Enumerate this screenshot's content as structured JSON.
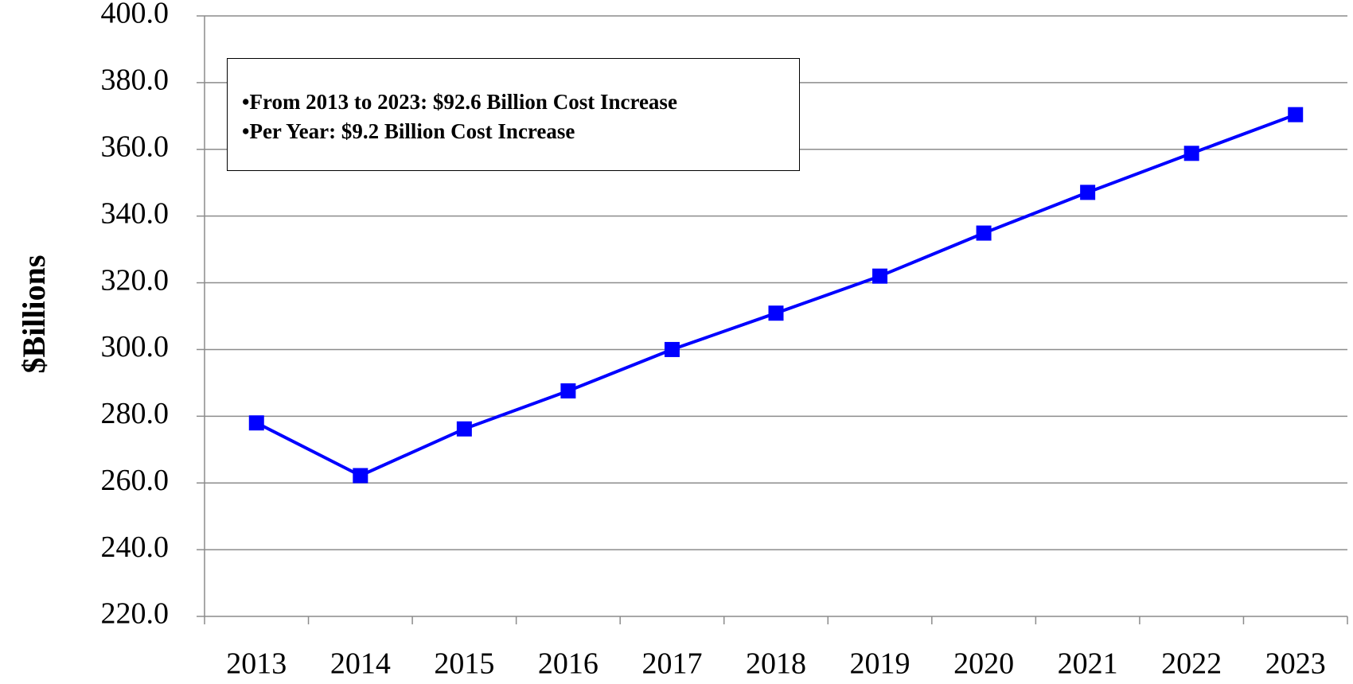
{
  "chart_data": {
    "type": "line",
    "title": "",
    "xlabel": "",
    "ylabel": "$Billions",
    "ylim": [
      220,
      400
    ],
    "yticks": [
      "220.0",
      "240.0",
      "260.0",
      "280.0",
      "300.0",
      "320.0",
      "340.0",
      "360.0",
      "380.0",
      "400.0"
    ],
    "ytick_values": [
      220,
      240,
      260,
      280,
      300,
      320,
      340,
      360,
      380,
      400
    ],
    "categories": [
      "2013",
      "2014",
      "2015",
      "2016",
      "2017",
      "2018",
      "2019",
      "2020",
      "2021",
      "2022",
      "2023"
    ],
    "series": [
      {
        "name": "",
        "values": [
          278.0,
          262.2,
          276.2,
          287.6,
          300.0,
          310.9,
          322.0,
          334.9,
          347.1,
          358.8,
          370.4
        ],
        "color": "#0000ff",
        "marker": "square"
      }
    ],
    "grid": "horizontal",
    "legend": "none",
    "annotations": [
      "•From 2013 to 2023:  $92.6 Billion Cost Increase",
      "•Per Year:  $9.2 Billion Cost Increase"
    ]
  }
}
